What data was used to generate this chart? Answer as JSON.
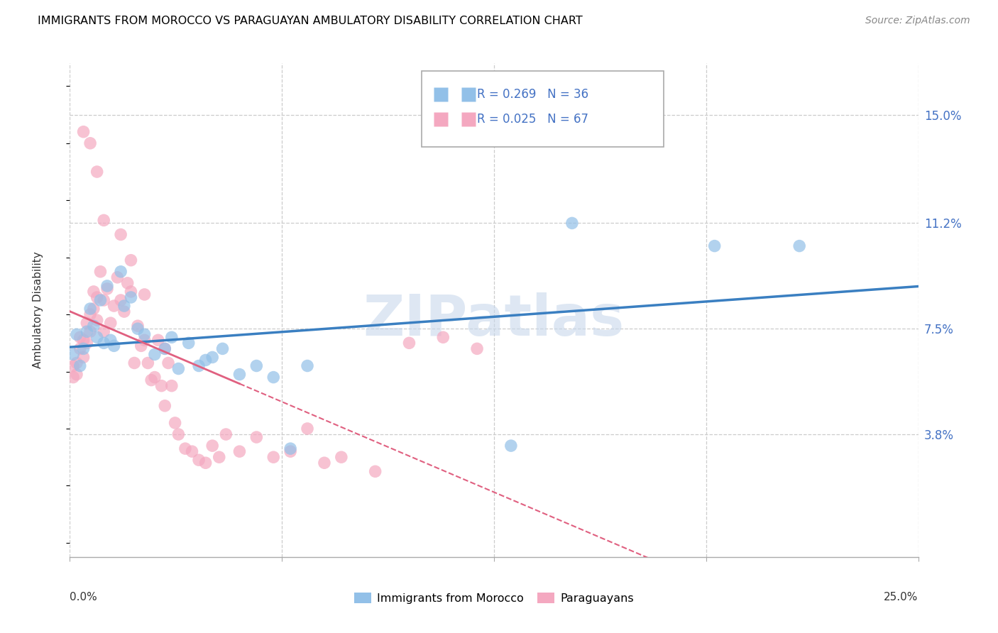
{
  "title": "IMMIGRANTS FROM MOROCCO VS PARAGUAYAN AMBULATORY DISABILITY CORRELATION CHART",
  "source": "Source: ZipAtlas.com",
  "ylabel": "Ambulatory Disability",
  "yticks_labels": [
    "15.0%",
    "11.2%",
    "7.5%",
    "3.8%"
  ],
  "ytick_vals": [
    0.15,
    0.112,
    0.075,
    0.038
  ],
  "xlim": [
    0.0,
    0.25
  ],
  "ylim": [
    -0.005,
    0.168
  ],
  "blue_color": "#92c0e8",
  "pink_color": "#f4a8c0",
  "blue_line_color": "#3a7fc1",
  "pink_line_color": "#e06080",
  "watermark": "ZIPatlas",
  "blue_points_x": [
    0.001,
    0.002,
    0.003,
    0.004,
    0.005,
    0.006,
    0.007,
    0.008,
    0.009,
    0.01,
    0.011,
    0.012,
    0.013,
    0.015,
    0.016,
    0.018,
    0.02,
    0.022,
    0.025,
    0.028,
    0.03,
    0.032,
    0.035,
    0.038,
    0.04,
    0.042,
    0.045,
    0.05,
    0.055,
    0.06,
    0.065,
    0.07,
    0.13,
    0.148,
    0.19,
    0.215
  ],
  "blue_points_y": [
    0.066,
    0.073,
    0.062,
    0.068,
    0.074,
    0.082,
    0.076,
    0.072,
    0.085,
    0.07,
    0.09,
    0.071,
    0.069,
    0.095,
    0.083,
    0.086,
    0.075,
    0.073,
    0.066,
    0.068,
    0.072,
    0.061,
    0.07,
    0.062,
    0.064,
    0.065,
    0.068,
    0.059,
    0.062,
    0.058,
    0.033,
    0.062,
    0.034,
    0.112,
    0.104,
    0.104
  ],
  "pink_points_x": [
    0.001,
    0.001,
    0.002,
    0.002,
    0.003,
    0.003,
    0.004,
    0.004,
    0.005,
    0.005,
    0.006,
    0.006,
    0.007,
    0.007,
    0.008,
    0.008,
    0.009,
    0.01,
    0.01,
    0.011,
    0.012,
    0.013,
    0.014,
    0.015,
    0.016,
    0.017,
    0.018,
    0.019,
    0.02,
    0.021,
    0.022,
    0.023,
    0.024,
    0.025,
    0.026,
    0.027,
    0.028,
    0.029,
    0.03,
    0.031,
    0.032,
    0.034,
    0.036,
    0.038,
    0.04,
    0.042,
    0.044,
    0.046,
    0.05,
    0.055,
    0.06,
    0.065,
    0.07,
    0.075,
    0.08,
    0.09,
    0.1,
    0.11,
    0.12,
    0.004,
    0.006,
    0.008,
    0.01,
    0.015,
    0.018,
    0.022,
    0.028
  ],
  "pink_points_y": [
    0.062,
    0.058,
    0.059,
    0.063,
    0.068,
    0.072,
    0.071,
    0.065,
    0.077,
    0.07,
    0.074,
    0.08,
    0.082,
    0.088,
    0.086,
    0.078,
    0.095,
    0.085,
    0.074,
    0.089,
    0.077,
    0.083,
    0.093,
    0.085,
    0.081,
    0.091,
    0.088,
    0.063,
    0.076,
    0.069,
    0.071,
    0.063,
    0.057,
    0.058,
    0.071,
    0.055,
    0.048,
    0.063,
    0.055,
    0.042,
    0.038,
    0.033,
    0.032,
    0.029,
    0.028,
    0.034,
    0.03,
    0.038,
    0.032,
    0.037,
    0.03,
    0.032,
    0.04,
    0.028,
    0.03,
    0.025,
    0.07,
    0.072,
    0.068,
    0.144,
    0.14,
    0.13,
    0.113,
    0.108,
    0.099,
    0.087,
    0.068
  ]
}
